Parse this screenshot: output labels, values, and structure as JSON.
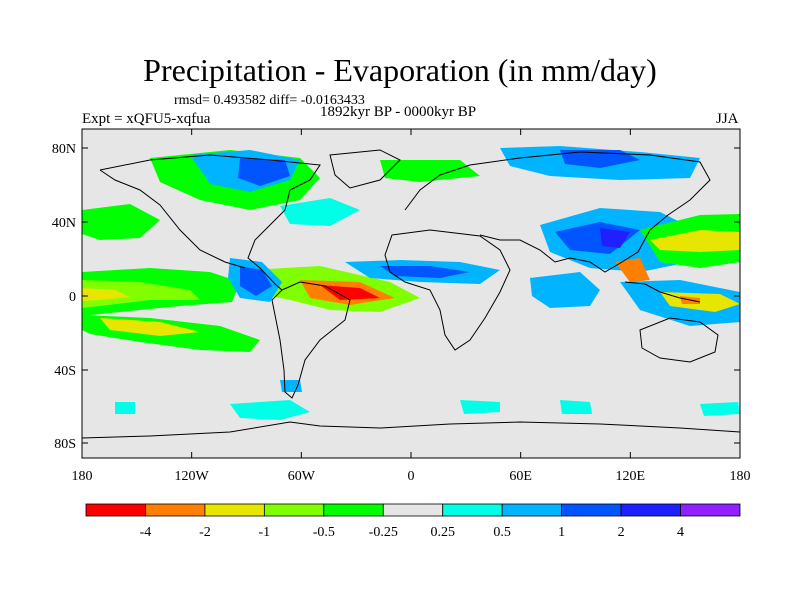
{
  "title": "Precipitation - Evaporation (in mm/day)",
  "stats": "rmsd= 0.493582  diff= -0.0163433",
  "experiment": "Expt = xQFU5-xqfua",
  "period": "1892kyr BP - 0000kyr BP",
  "season": "JJA",
  "axes": {
    "lat_ticks": [
      "80N",
      "40N",
      "0",
      "40S",
      "80S"
    ],
    "lon_ticks": [
      "180",
      "120W",
      "60W",
      "0",
      "60E",
      "120E",
      "180"
    ]
  },
  "colorbar": {
    "labels": [
      "-4",
      "-2",
      "-1",
      "-0.5",
      "-0.25",
      "0.25",
      "0.5",
      "1",
      "2",
      "4"
    ],
    "colors": [
      "#ff0000",
      "#ff8000",
      "#e6e600",
      "#80ff00",
      "#00ff00",
      "#e6e6e6",
      "#00ffe6",
      "#00b4ff",
      "#0055ff",
      "#2020ff",
      "#9020ff"
    ]
  },
  "colors": {
    "ocean_background": "#e6e6e6",
    "coastline": "#000000"
  }
}
